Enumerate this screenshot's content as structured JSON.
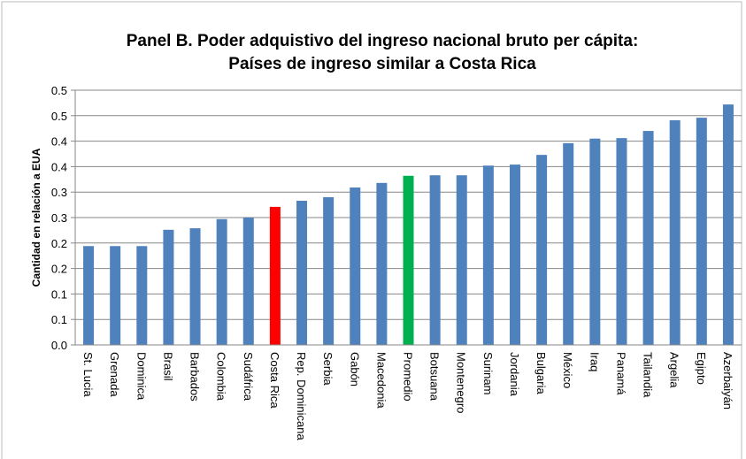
{
  "chart_data": {
    "type": "bar",
    "title": [
      "Panel B. Poder adquistivo del ingreso nacional bruto per cápita:",
      "Países de ingreso similar a Costa Rica"
    ],
    "y_label": "Cantidad en relación a EUA",
    "categories": [
      "St. Lucia",
      "Grenada",
      "Dominica",
      "Brasil",
      "Barbados",
      "Colombia",
      "Sudáfrica",
      "Costa Rica",
      "Rep. Dominicana",
      "Serbia",
      "Gabón",
      "Macedonia",
      "Promedio",
      "Botsuana",
      "Montenegro",
      "Surinam",
      "Jordania",
      "Bulgaria",
      "México",
      "Iraq",
      "Panamá",
      "Tailandia",
      "Argelia",
      "Egipto",
      "Azerbaiyán"
    ],
    "values": [
      0.194,
      0.194,
      0.194,
      0.226,
      0.229,
      0.247,
      0.25,
      0.271,
      0.283,
      0.29,
      0.309,
      0.318,
      0.332,
      0.333,
      0.333,
      0.352,
      0.354,
      0.373,
      0.396,
      0.405,
      0.406,
      0.42,
      0.441,
      0.446,
      0.472
    ],
    "colors": [
      "#4f81bd",
      "#4f81bd",
      "#4f81bd",
      "#4f81bd",
      "#4f81bd",
      "#4f81bd",
      "#4f81bd",
      "#ff0000",
      "#4f81bd",
      "#4f81bd",
      "#4f81bd",
      "#4f81bd",
      "#00b050",
      "#4f81bd",
      "#4f81bd",
      "#4f81bd",
      "#4f81bd",
      "#4f81bd",
      "#4f81bd",
      "#4f81bd",
      "#4f81bd",
      "#4f81bd",
      "#4f81bd",
      "#4f81bd",
      "#4f81bd"
    ],
    "ylim": [
      0,
      0.5
    ],
    "yticks": [
      {
        "value": 0,
        "label": "0.0"
      },
      {
        "value": 0.05,
        "label": "0.1"
      },
      0.1,
      {
        "value": 0.15,
        "label": "0.2"
      },
      0.2,
      {
        "value": 0.25,
        "label": "0.3"
      },
      0.3,
      {
        "value": 0.35,
        "label": "0.4"
      },
      0.4,
      {
        "value": 0.45,
        "label": "0.5"
      },
      0.5
    ],
    "grid": true
  }
}
